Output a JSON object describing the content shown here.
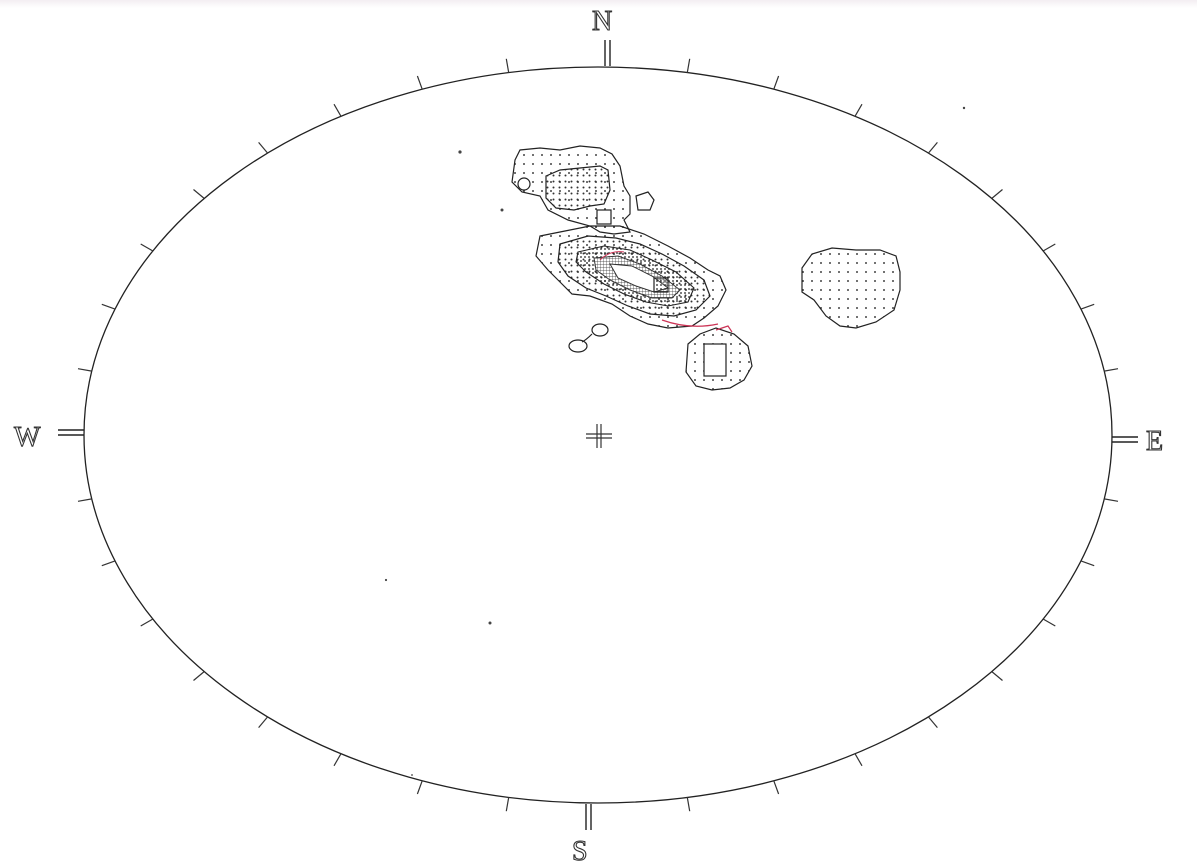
{
  "directions": {
    "north": "N",
    "south": "S",
    "east": "E",
    "west": "W"
  },
  "colors": {
    "outline": "#222222",
    "stipple": "#444444",
    "accent": "#cc3355",
    "paper": "#ffffff"
  },
  "tick_count": 36,
  "contour_groups": [
    {
      "name": "north-upper-cluster"
    },
    {
      "name": "central-dense-cluster"
    },
    {
      "name": "east-patch"
    },
    {
      "name": "southeast-patch"
    },
    {
      "name": "small-loops"
    }
  ]
}
